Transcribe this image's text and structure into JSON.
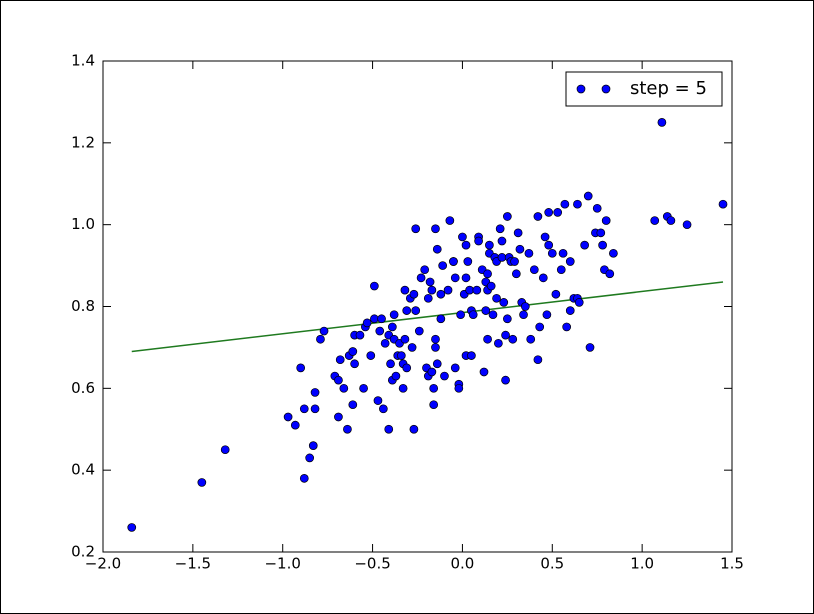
{
  "chart_data": {
    "type": "scatter",
    "series": [
      {
        "name": "step = 5",
        "color": "#0000ff",
        "x": [
          -1.84,
          -1.45,
          -1.32,
          -0.9,
          -0.97,
          -0.93,
          -0.88,
          -0.88,
          -0.85,
          -0.83,
          -0.82,
          -0.82,
          -0.79,
          -0.77,
          -0.71,
          -0.69,
          -0.68,
          -0.69,
          -0.66,
          -0.64,
          -0.63,
          -0.61,
          -0.61,
          -0.6,
          -0.6,
          -0.57,
          -0.55,
          -0.54,
          -0.53,
          -0.51,
          -0.49,
          -0.49,
          -0.47,
          -0.46,
          -0.45,
          -0.44,
          -0.43,
          -0.41,
          -0.41,
          -0.4,
          -0.39,
          -0.39,
          -0.38,
          -0.38,
          -0.37,
          -0.36,
          -0.35,
          -0.34,
          -0.33,
          -0.33,
          -0.32,
          -0.32,
          -0.31,
          -0.31,
          -0.29,
          -0.28,
          -0.27,
          -0.27,
          -0.26,
          -0.26,
          -0.24,
          -0.23,
          -0.21,
          -0.2,
          -0.19,
          -0.19,
          -0.18,
          -0.17,
          -0.17,
          -0.16,
          -0.16,
          -0.15,
          -0.15,
          -0.15,
          -0.14,
          -0.14,
          -0.12,
          -0.12,
          -0.11,
          -0.1,
          -0.08,
          -0.07,
          -0.05,
          -0.05,
          -0.04,
          -0.04,
          -0.02,
          -0.02,
          -0.01,
          0.0,
          0.01,
          0.02,
          0.02,
          0.02,
          0.03,
          0.04,
          0.05,
          0.05,
          0.06,
          0.08,
          0.09,
          0.09,
          0.11,
          0.12,
          0.13,
          0.13,
          0.14,
          0.14,
          0.14,
          0.15,
          0.15,
          0.16,
          0.17,
          0.18,
          0.19,
          0.19,
          0.2,
          0.21,
          0.22,
          0.22,
          0.23,
          0.24,
          0.24,
          0.25,
          0.25,
          0.26,
          0.27,
          0.28,
          0.29,
          0.3,
          0.31,
          0.32,
          0.33,
          0.34,
          0.35,
          0.37,
          0.38,
          0.4,
          0.42,
          0.42,
          0.43,
          0.45,
          0.46,
          0.47,
          0.48,
          0.48,
          0.5,
          0.52,
          0.53,
          0.55,
          0.56,
          0.57,
          0.58,
          0.6,
          0.6,
          0.62,
          0.64,
          0.64,
          0.65,
          0.68,
          0.7,
          0.71,
          0.74,
          0.75,
          0.77,
          0.78,
          0.79,
          0.8,
          0.82,
          0.84,
          1.07,
          1.11,
          1.14,
          1.16,
          1.25,
          1.45
        ],
        "y": [
          0.26,
          0.37,
          0.45,
          0.65,
          0.53,
          0.51,
          0.55,
          0.38,
          0.43,
          0.46,
          0.59,
          0.55,
          0.72,
          0.74,
          0.63,
          0.62,
          0.67,
          0.53,
          0.6,
          0.5,
          0.68,
          0.69,
          0.56,
          0.66,
          0.73,
          0.73,
          0.6,
          0.75,
          0.76,
          0.68,
          0.85,
          0.77,
          0.57,
          0.74,
          0.77,
          0.55,
          0.71,
          0.5,
          0.73,
          0.66,
          0.75,
          0.62,
          0.78,
          0.72,
          0.63,
          0.68,
          0.71,
          0.68,
          0.66,
          0.6,
          0.84,
          0.72,
          0.65,
          0.79,
          0.82,
          0.7,
          0.83,
          0.5,
          0.99,
          0.79,
          0.74,
          0.87,
          0.89,
          0.65,
          0.82,
          0.63,
          0.86,
          0.84,
          0.64,
          0.6,
          0.56,
          0.7,
          0.99,
          0.72,
          0.94,
          0.66,
          0.77,
          0.83,
          0.9,
          0.63,
          0.84,
          1.01,
          0.91,
          0.91,
          0.65,
          0.87,
          0.61,
          0.6,
          0.78,
          0.97,
          0.83,
          0.87,
          0.68,
          0.95,
          0.91,
          0.84,
          0.68,
          0.79,
          0.78,
          0.84,
          0.97,
          0.96,
          0.89,
          0.64,
          0.79,
          0.86,
          0.84,
          0.88,
          0.72,
          0.95,
          0.93,
          0.85,
          0.78,
          0.92,
          0.91,
          0.82,
          0.71,
          0.99,
          0.96,
          0.92,
          0.81,
          0.62,
          0.73,
          0.77,
          1.02,
          0.92,
          0.91,
          0.72,
          0.91,
          0.88,
          0.98,
          0.94,
          0.81,
          0.78,
          0.8,
          0.93,
          0.72,
          0.89,
          1.02,
          0.67,
          0.75,
          0.87,
          0.97,
          0.78,
          0.95,
          1.03,
          0.93,
          0.83,
          1.03,
          0.89,
          0.93,
          1.05,
          0.75,
          0.91,
          0.79,
          0.82,
          1.05,
          0.82,
          0.81,
          0.95,
          1.07,
          0.7,
          0.98,
          1.04,
          0.98,
          0.95,
          0.89,
          1.01,
          0.88,
          0.93,
          1.01,
          1.25,
          1.02,
          1.01,
          1.0,
          1.05
        ]
      }
    ],
    "lines": [
      {
        "color": "#1f7a1f",
        "x": [
          -1.84,
          1.45
        ],
        "y": [
          0.69,
          0.86
        ]
      }
    ],
    "xlim": [
      -2.0,
      1.5
    ],
    "ylim": [
      0.2,
      1.4
    ],
    "xticks": [
      {
        "value": -2.0,
        "label": "−2.0"
      },
      {
        "value": -1.5,
        "label": "−1.5"
      },
      {
        "value": -1.0,
        "label": "−1.0"
      },
      {
        "value": -0.5,
        "label": "−0.5"
      },
      {
        "value": 0.0,
        "label": "0.0"
      },
      {
        "value": 0.5,
        "label": "0.5"
      },
      {
        "value": 1.0,
        "label": "1.0"
      },
      {
        "value": 1.5,
        "label": "1.5"
      }
    ],
    "yticks": [
      0.2,
      0.4,
      0.6,
      0.8,
      {
        "value": 1.0,
        "label": "1.0"
      },
      1.2,
      1.4
    ],
    "legend": "upper right"
  }
}
